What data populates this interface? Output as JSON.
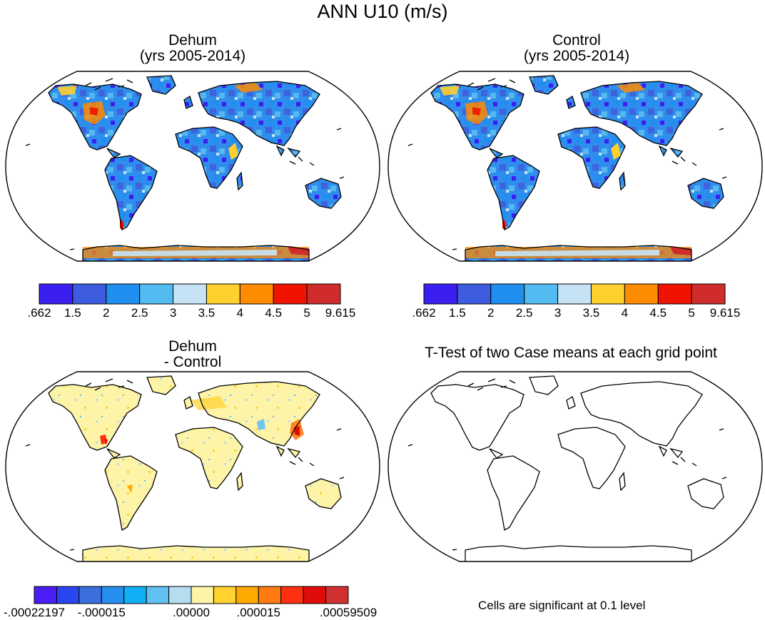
{
  "title": "ANN U10 (m/s)",
  "panels": {
    "dehum": {
      "title_line1": "Dehum",
      "title_line2": "(yrs 2005-2014)"
    },
    "control": {
      "title_line1": "Control",
      "title_line2": "(yrs 2005-2014)"
    },
    "diff": {
      "title_line1": "Dehum",
      "title_line2": "- Control"
    },
    "ttest": {
      "title": "T-Test of two Case means at each grid point",
      "caption": "Cells are significant at 0.1 level"
    }
  },
  "colorbars": {
    "main": {
      "colors": [
        "#3b1ef0",
        "#3d5ce0",
        "#1f8ff0",
        "#52bbf0",
        "#c6e3f5",
        "#ffd02e",
        "#ff8c00",
        "#f01400",
        "#d02c2c"
      ],
      "labels": [
        ".662",
        "1.5",
        "2",
        "2.5",
        "3",
        "3.5",
        "4",
        "4.5",
        "5",
        "9.615"
      ]
    },
    "diff": {
      "colors": [
        "#4a1ef5",
        "#2a46ee",
        "#3b6fde",
        "#2590ee",
        "#10b0f5",
        "#60c0ef",
        "#b6dcf0",
        "#fdf4a8",
        "#ffd22e",
        "#ffaa00",
        "#ff7a10",
        "#ff3010",
        "#e00c0c",
        "#d03030"
      ],
      "labels": [
        "-.00022197",
        "-.000015",
        ".00000",
        ".000015",
        ".00059509"
      ]
    }
  },
  "chart_data": {
    "type": "heatmap",
    "title": "ANN U10 (m/s)",
    "variable": "U10",
    "units": "m/s",
    "panels": [
      {
        "name": "Dehum",
        "period": "yrs 2005-2014",
        "range": [
          0.662,
          9.615
        ],
        "levels": [
          0.662,
          1.5,
          2,
          2.5,
          3,
          3.5,
          4,
          4.5,
          5,
          9.615
        ]
      },
      {
        "name": "Control",
        "period": "yrs 2005-2014",
        "range": [
          0.662,
          9.615
        ],
        "levels": [
          0.662,
          1.5,
          2,
          2.5,
          3,
          3.5,
          4,
          4.5,
          5,
          9.615
        ]
      },
      {
        "name": "Dehum - Control",
        "range": [
          -0.00022197,
          0.00059509
        ],
        "levels": [
          -0.00022197,
          -1.5e-05,
          0.0,
          1.5e-05,
          0.00059509
        ]
      },
      {
        "name": "T-Test of two Case means at each grid point",
        "significance": 0.1
      }
    ]
  }
}
